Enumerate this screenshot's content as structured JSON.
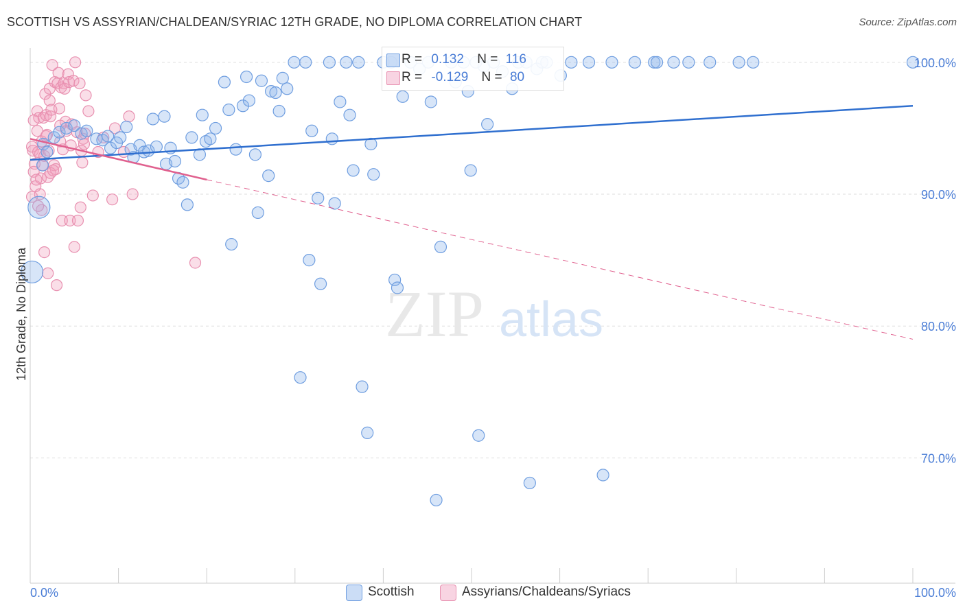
{
  "header": {
    "title": "SCOTTISH VS ASSYRIAN/CHALDEAN/SYRIAC 12TH GRADE, NO DIPLOMA CORRELATION CHART",
    "source": "Source: ZipAtlas.com"
  },
  "watermark": {
    "zip": "ZIP",
    "atlas": "atlas"
  },
  "legend_top": {
    "scottish": {
      "r_label": "R =",
      "r_value": "0.132",
      "n_label": "N =",
      "n_value": "116"
    },
    "assyrian": {
      "r_label": "R =",
      "r_value": "-0.129",
      "n_label": "N =",
      "n_value": "80"
    }
  },
  "legend_bottom": {
    "scottish": "Scottish",
    "assyrian": "Assyrians/Chaldeans/Syriacs"
  },
  "colors": {
    "scottish_fill": "rgba(140,180,235,0.35)",
    "scottish_stroke": "#6f9ee0",
    "scottish_line": "#2f6fcf",
    "assyrian_fill": "rgba(240,160,190,0.35)",
    "assyrian_stroke": "#e890b0",
    "assyrian_line": "#e0608e",
    "axis_text": "#4a7dd6",
    "grid": "#dddddd"
  },
  "chart_data": {
    "type": "scatter",
    "title": "SCOTTISH VS ASSYRIAN/CHALDEAN/SYRIAC 12TH GRADE, NO DIPLOMA CORRELATION CHART",
    "xlabel": "",
    "ylabel": "12th Grade, No Diploma",
    "xlim": [
      0,
      100
    ],
    "ylim": [
      60.5,
      101.5
    ],
    "x_tick_labels": [
      "0.0%",
      "100.0%"
    ],
    "y_ticks": [
      70,
      80,
      90,
      100
    ],
    "y_tick_labels": [
      "70.0%",
      "80.0%",
      "90.0%",
      "100.0%"
    ],
    "grid": true,
    "series": [
      {
        "name": "Scottish",
        "trend": {
          "x": [
            0,
            100
          ],
          "y": [
            92.6,
            96.7
          ]
        },
        "points": [
          [
            1.0,
            89.0
          ],
          [
            0.2,
            84.1
          ],
          [
            1.5,
            93.8
          ],
          [
            2.7,
            94.3
          ],
          [
            1.9,
            93.2
          ],
          [
            3.3,
            94.7
          ],
          [
            4.1,
            95.0
          ],
          [
            5.0,
            95.2
          ],
          [
            5.8,
            94.6
          ],
          [
            6.4,
            94.8
          ],
          [
            7.5,
            94.2
          ],
          [
            8.2,
            94.1
          ],
          [
            8.8,
            94.4
          ],
          [
            9.1,
            93.5
          ],
          [
            9.8,
            93.9
          ],
          [
            10.2,
            94.3
          ],
          [
            10.9,
            95.1
          ],
          [
            11.4,
            93.4
          ],
          [
            11.7,
            92.8
          ],
          [
            12.4,
            93.7
          ],
          [
            12.9,
            93.2
          ],
          [
            13.4,
            93.3
          ],
          [
            13.9,
            95.7
          ],
          [
            14.3,
            93.6
          ],
          [
            15.2,
            95.9
          ],
          [
            15.4,
            92.3
          ],
          [
            15.9,
            93.5
          ],
          [
            16.4,
            92.5
          ],
          [
            16.8,
            91.2
          ],
          [
            17.3,
            90.9
          ],
          [
            17.8,
            89.2
          ],
          [
            18.3,
            94.3
          ],
          [
            19.2,
            93.0
          ],
          [
            19.5,
            96.0
          ],
          [
            19.9,
            94.0
          ],
          [
            20.4,
            94.2
          ],
          [
            21.0,
            95.0
          ],
          [
            22.0,
            98.5
          ],
          [
            22.5,
            96.4
          ],
          [
            22.8,
            86.2
          ],
          [
            23.3,
            93.4
          ],
          [
            24.1,
            96.7
          ],
          [
            24.5,
            98.9
          ],
          [
            24.8,
            97.1
          ],
          [
            25.5,
            93.0
          ],
          [
            25.8,
            88.6
          ],
          [
            26.2,
            98.6
          ],
          [
            27.0,
            91.4
          ],
          [
            27.3,
            97.8
          ],
          [
            27.8,
            97.7
          ],
          [
            28.2,
            96.3
          ],
          [
            28.6,
            98.8
          ],
          [
            29.1,
            98.0
          ],
          [
            29.9,
            100.0
          ],
          [
            30.6,
            76.1
          ],
          [
            31.2,
            100.0
          ],
          [
            31.6,
            85.0
          ],
          [
            31.9,
            94.8
          ],
          [
            32.6,
            89.7
          ],
          [
            32.9,
            83.2
          ],
          [
            33.9,
            100.0
          ],
          [
            34.2,
            94.2
          ],
          [
            34.5,
            89.3
          ],
          [
            35.1,
            97.0
          ],
          [
            35.8,
            100.0
          ],
          [
            36.2,
            96.0
          ],
          [
            36.6,
            91.8
          ],
          [
            37.2,
            100.0
          ],
          [
            37.6,
            75.4
          ],
          [
            38.2,
            71.9
          ],
          [
            38.6,
            93.8
          ],
          [
            38.9,
            91.5
          ],
          [
            40.0,
            100.0
          ],
          [
            40.9,
            100.0
          ],
          [
            41.3,
            83.5
          ],
          [
            41.6,
            82.9
          ],
          [
            42.2,
            97.4
          ],
          [
            43.1,
            100.0
          ],
          [
            44.1,
            99.5
          ],
          [
            45.1,
            100.0
          ],
          [
            45.4,
            97.0
          ],
          [
            46.0,
            66.8
          ],
          [
            46.5,
            86.0
          ],
          [
            47.7,
            100.0
          ],
          [
            48.2,
            98.5
          ],
          [
            49.1,
            100.0
          ],
          [
            49.6,
            97.8
          ],
          [
            49.9,
            91.8
          ],
          [
            50.5,
            100.0
          ],
          [
            50.8,
            71.7
          ],
          [
            51.4,
            99.7
          ],
          [
            51.8,
            95.3
          ],
          [
            52.5,
            100.0
          ],
          [
            53.5,
            99.3
          ],
          [
            54.6,
            98.0
          ],
          [
            55.3,
            100.0
          ],
          [
            56.2,
            100.0
          ],
          [
            56.6,
            68.1
          ],
          [
            57.4,
            99.5
          ],
          [
            58.0,
            100.0
          ],
          [
            58.5,
            100.0
          ],
          [
            60.1,
            99.0
          ],
          [
            61.3,
            100.0
          ],
          [
            63.3,
            100.0
          ],
          [
            64.9,
            68.7
          ],
          [
            65.9,
            100.0
          ],
          [
            68.5,
            100.0
          ],
          [
            70.7,
            100.0
          ],
          [
            71.0,
            100.0
          ],
          [
            72.9,
            100.0
          ],
          [
            74.6,
            100.0
          ],
          [
            77.0,
            100.0
          ],
          [
            80.3,
            100.0
          ],
          [
            81.9,
            100.0
          ],
          [
            100.0,
            100.0
          ],
          [
            1.4,
            92.2
          ]
        ]
      },
      {
        "name": "Assyrians/Chaldeans/Syriacs",
        "trend": {
          "x": [
            0,
            20
          ],
          "y": [
            94.2,
            91.1
          ]
        },
        "trend_dashed": {
          "x": [
            20,
            100
          ],
          "y": [
            91.1,
            79.0
          ]
        },
        "points": [
          [
            0.3,
            93.3
          ],
          [
            0.5,
            92.3
          ],
          [
            0.4,
            91.7
          ],
          [
            0.6,
            90.6
          ],
          [
            0.8,
            94.8
          ],
          [
            0.8,
            96.3
          ],
          [
            1.0,
            95.8
          ],
          [
            1.1,
            93.0
          ],
          [
            1.2,
            91.2
          ],
          [
            1.3,
            94.0
          ],
          [
            1.4,
            92.2
          ],
          [
            1.5,
            95.8
          ],
          [
            1.6,
            85.6
          ],
          [
            1.7,
            97.6
          ],
          [
            1.8,
            96.0
          ],
          [
            1.9,
            94.5
          ],
          [
            2.0,
            91.3
          ],
          [
            2.0,
            84.0
          ],
          [
            2.2,
            97.1
          ],
          [
            2.2,
            98.0
          ],
          [
            2.3,
            95.9
          ],
          [
            2.4,
            96.4
          ],
          [
            2.5,
            99.8
          ],
          [
            2.7,
            92.2
          ],
          [
            2.8,
            98.5
          ],
          [
            2.9,
            91.9
          ],
          [
            3.0,
            83.1
          ],
          [
            3.1,
            98.4
          ],
          [
            3.2,
            99.2
          ],
          [
            3.3,
            96.5
          ],
          [
            3.4,
            94.0
          ],
          [
            3.5,
            98.1
          ],
          [
            3.6,
            88.0
          ],
          [
            3.7,
            93.4
          ],
          [
            3.8,
            98.4
          ],
          [
            3.9,
            98.0
          ],
          [
            4.0,
            95.5
          ],
          [
            4.1,
            94.8
          ],
          [
            4.3,
            99.1
          ],
          [
            4.4,
            98.5
          ],
          [
            4.5,
            88.0
          ],
          [
            4.6,
            93.7
          ],
          [
            4.7,
            95.3
          ],
          [
            4.9,
            98.6
          ],
          [
            5.0,
            86.0
          ],
          [
            5.1,
            100.0
          ],
          [
            5.3,
            94.7
          ],
          [
            5.4,
            88.0
          ],
          [
            5.6,
            98.4
          ],
          [
            5.7,
            89.0
          ],
          [
            5.8,
            93.3
          ],
          [
            5.9,
            92.4
          ],
          [
            6.0,
            94.2
          ],
          [
            6.1,
            93.8
          ],
          [
            6.2,
            94.6
          ],
          [
            6.3,
            97.5
          ],
          [
            6.6,
            96.3
          ],
          [
            7.1,
            89.9
          ],
          [
            7.7,
            93.2
          ],
          [
            8.3,
            94.3
          ],
          [
            9.3,
            89.6
          ],
          [
            9.6,
            95.0
          ],
          [
            10.6,
            93.2
          ],
          [
            11.2,
            95.9
          ],
          [
            11.6,
            90.0
          ],
          [
            18.7,
            84.8
          ],
          [
            0.2,
            89.8
          ],
          [
            0.2,
            93.6
          ],
          [
            0.4,
            95.6
          ],
          [
            0.7,
            91.1
          ],
          [
            0.9,
            93.2
          ],
          [
            1.1,
            90.0
          ],
          [
            1.3,
            88.8
          ],
          [
            1.6,
            92.9
          ],
          [
            1.8,
            94.4
          ],
          [
            2.1,
            93.3
          ],
          [
            2.3,
            91.6
          ],
          [
            2.6,
            91.8
          ],
          [
            3.4,
            95.2
          ],
          [
            0.9,
            89.1
          ]
        ]
      }
    ]
  }
}
